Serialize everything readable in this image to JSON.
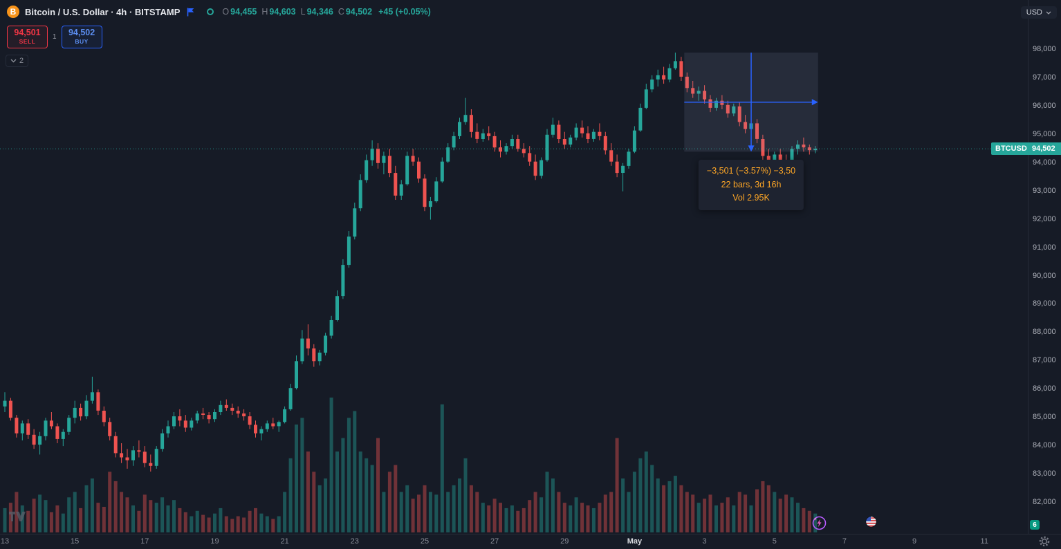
{
  "header": {
    "symbol_title": "Bitcoin / U.S. Dollar · 4h · BITSTAMP",
    "ohlc": [
      {
        "label": "O",
        "value": "94,455"
      },
      {
        "label": "H",
        "value": "94,603"
      },
      {
        "label": "L",
        "value": "94,346"
      },
      {
        "label": "C",
        "value": "94,502"
      }
    ],
    "change": "+45 (+0.05%)",
    "sell_price": "94,501",
    "sell_label": "SELL",
    "spread": "1",
    "buy_price": "94,502",
    "buy_label": "BUY",
    "collapse_count": "2"
  },
  "top_right": {
    "currency": "USD"
  },
  "price_tag": {
    "symbol": "BTCUSD",
    "price": "94,502"
  },
  "measure_tooltip": {
    "line1": "−3,501 (−3.57%) −3,50",
    "line2": "22 bars, 3d 16h",
    "line3": "Vol 2.95K"
  },
  "bottom_right": {
    "badge": "6"
  },
  "icons": {
    "bitcoin-icon": "B",
    "flag-icon": "blue-flag",
    "market-status-icon": "green-ring",
    "chevron-down-icon": "⌄",
    "settings-gear-icon": "gear",
    "supercharts-icon": "lightning-circle",
    "ideas-flag-icon": "us-flag-circle",
    "tradingview-logo": "TV"
  },
  "colors": {
    "up": "#26a69a",
    "down": "#ef5350",
    "accent_blue": "#2962ff",
    "sell_red": "#f23645",
    "buy_blue": "#5b8def",
    "tag_teal": "#26a69a",
    "tooltip_text": "#ffa726",
    "measure_fill": "rgba(147,163,196,0.13)"
  },
  "chart_data": {
    "type": "candlestick",
    "symbol": "BTCUSD",
    "exchange": "BITSTAMP",
    "interval": "4h",
    "last": {
      "open": 94455,
      "high": 94603,
      "low": 94346,
      "close": 94502
    },
    "change": "+45 (+0.05%)",
    "price_axis": {
      "min": 82000,
      "max": 98000,
      "step": 1000,
      "labels": [
        "98,000",
        "97,000",
        "96,000",
        "95,000",
        "94,000",
        "93,000",
        "92,000",
        "91,000",
        "90,000",
        "89,000",
        "88,000",
        "87,000",
        "86,000",
        "85,000",
        "84,000",
        "83,000",
        "82,000"
      ]
    },
    "time_axis": [
      {
        "label": "13",
        "bar": 0
      },
      {
        "label": "15",
        "bar": 12
      },
      {
        "label": "17",
        "bar": 24
      },
      {
        "label": "19",
        "bar": 36
      },
      {
        "label": "21",
        "bar": 48
      },
      {
        "label": "23",
        "bar": 60
      },
      {
        "label": "25",
        "bar": 72
      },
      {
        "label": "27",
        "bar": 84
      },
      {
        "label": "29",
        "bar": 96
      },
      {
        "label": "May",
        "bar": 108,
        "major": true
      },
      {
        "label": "3",
        "bar": 120
      },
      {
        "label": "5",
        "bar": 132
      },
      {
        "label": "7",
        "bar": 144
      },
      {
        "label": "9",
        "bar": 156
      },
      {
        "label": "11",
        "bar": 168
      }
    ],
    "measurement": {
      "from_bar": 117,
      "to_bar": 139,
      "from_price": 97900,
      "to_price": 94400,
      "bars": 22,
      "duration": "3d 16h",
      "price_change": -3501,
      "pct": "-3.57%",
      "volume": "2.95K"
    },
    "candles": [
      [
        85400,
        85900,
        85200,
        85600,
        18
      ],
      [
        85600,
        85700,
        84900,
        85000,
        22
      ],
      [
        85000,
        85100,
        84300,
        84450,
        30
      ],
      [
        84450,
        84900,
        84200,
        84800,
        20
      ],
      [
        84800,
        84950,
        84250,
        84400,
        16
      ],
      [
        84400,
        84600,
        83900,
        84050,
        25
      ],
      [
        84050,
        84500,
        83700,
        84350,
        28
      ],
      [
        84350,
        85000,
        84200,
        84900,
        24
      ],
      [
        84900,
        85200,
        84600,
        84700,
        15
      ],
      [
        84700,
        84800,
        84100,
        84250,
        20
      ],
      [
        84250,
        84600,
        84000,
        84500,
        14
      ],
      [
        84500,
        85100,
        84400,
        85000,
        26
      ],
      [
        85000,
        85600,
        84800,
        85350,
        30
      ],
      [
        85350,
        85500,
        84900,
        85050,
        18
      ],
      [
        85050,
        85800,
        84950,
        85600,
        35
      ],
      [
        85600,
        86450,
        85500,
        85900,
        40
      ],
      [
        85900,
        86000,
        85100,
        85250,
        22
      ],
      [
        85250,
        85400,
        84700,
        84850,
        19
      ],
      [
        84850,
        85000,
        84200,
        84350,
        45
      ],
      [
        84350,
        84500,
        83600,
        83750,
        38
      ],
      [
        83750,
        84100,
        83400,
        83600,
        30
      ],
      [
        83600,
        83900,
        83200,
        83500,
        26
      ],
      [
        83500,
        84000,
        83300,
        83850,
        20
      ],
      [
        83850,
        84200,
        83600,
        83800,
        16
      ],
      [
        83800,
        84000,
        83250,
        83400,
        28
      ],
      [
        83400,
        83700,
        83100,
        83300,
        24
      ],
      [
        83300,
        84000,
        83200,
        83900,
        22
      ],
      [
        83900,
        84600,
        83800,
        84450,
        26
      ],
      [
        84450,
        84900,
        84300,
        84700,
        20
      ],
      [
        84700,
        85200,
        84600,
        85050,
        24
      ],
      [
        85050,
        85300,
        84700,
        84900,
        18
      ],
      [
        84900,
        85100,
        84500,
        84650,
        15
      ],
      [
        84650,
        85000,
        84550,
        84900,
        12
      ],
      [
        84900,
        85250,
        84800,
        85150,
        16
      ],
      [
        85150,
        85350,
        84950,
        85100,
        13
      ],
      [
        85100,
        85200,
        84800,
        84950,
        11
      ],
      [
        84950,
        85300,
        84850,
        85200,
        14
      ],
      [
        85200,
        85600,
        85100,
        85450,
        18
      ],
      [
        85450,
        85650,
        85250,
        85350,
        12
      ],
      [
        85350,
        85500,
        85100,
        85250,
        10
      ],
      [
        85250,
        85400,
        85000,
        85150,
        12
      ],
      [
        85150,
        85300,
        84900,
        85050,
        11
      ],
      [
        85050,
        85200,
        84600,
        84750,
        16
      ],
      [
        84750,
        84900,
        84300,
        84450,
        18
      ],
      [
        84450,
        84700,
        84200,
        84600,
        14
      ],
      [
        84600,
        84900,
        84500,
        84800,
        12
      ],
      [
        84800,
        85000,
        84600,
        84700,
        10
      ],
      [
        84700,
        84900,
        84500,
        84850,
        12
      ],
      [
        84850,
        85400,
        84800,
        85300,
        30
      ],
      [
        85300,
        86200,
        85250,
        86050,
        55
      ],
      [
        86050,
        87200,
        86000,
        87000,
        80
      ],
      [
        87000,
        88100,
        86900,
        87800,
        85
      ],
      [
        87800,
        88300,
        87200,
        87450,
        60
      ],
      [
        87450,
        87600,
        86800,
        87000,
        45
      ],
      [
        87000,
        87400,
        86850,
        87300,
        35
      ],
      [
        87300,
        88000,
        87200,
        87900,
        40
      ],
      [
        87900,
        88600,
        87800,
        88450,
        100
      ],
      [
        88450,
        89500,
        88400,
        89300,
        60
      ],
      [
        89300,
        90600,
        89200,
        90400,
        70
      ],
      [
        90400,
        91600,
        90300,
        91400,
        85
      ],
      [
        91400,
        92600,
        91300,
        92400,
        90
      ],
      [
        92400,
        93600,
        92300,
        93400,
        60
      ],
      [
        93400,
        94300,
        93300,
        94100,
        55
      ],
      [
        94100,
        94800,
        93900,
        94500,
        50
      ],
      [
        94500,
        94700,
        93800,
        94000,
        70
      ],
      [
        94000,
        94400,
        93600,
        94250,
        30
      ],
      [
        94250,
        94500,
        93500,
        93650,
        45
      ],
      [
        93650,
        93900,
        92700,
        92850,
        50
      ],
      [
        92850,
        93400,
        92700,
        93250,
        30
      ],
      [
        93250,
        94400,
        93200,
        94250,
        35
      ],
      [
        94250,
        94500,
        93900,
        94050,
        25
      ],
      [
        94050,
        94200,
        93300,
        93450,
        28
      ],
      [
        93450,
        93600,
        92300,
        92450,
        35
      ],
      [
        92450,
        92800,
        92000,
        92650,
        30
      ],
      [
        92650,
        93500,
        92600,
        93350,
        28
      ],
      [
        93350,
        94200,
        93300,
        94050,
        95
      ],
      [
        94050,
        94700,
        94000,
        94550,
        30
      ],
      [
        94550,
        95100,
        94450,
        94950,
        35
      ],
      [
        94950,
        95600,
        94850,
        95450,
        40
      ],
      [
        95450,
        96300,
        95350,
        95700,
        55
      ],
      [
        95700,
        95900,
        94900,
        95100,
        35
      ],
      [
        95100,
        95400,
        94700,
        94850,
        30
      ],
      [
        94850,
        95200,
        94750,
        95050,
        22
      ],
      [
        95050,
        95300,
        94800,
        94950,
        20
      ],
      [
        94950,
        95100,
        94400,
        94550,
        25
      ],
      [
        94550,
        94800,
        94200,
        94400,
        22
      ],
      [
        94400,
        94700,
        94300,
        94600,
        18
      ],
      [
        94600,
        95000,
        94500,
        94850,
        20
      ],
      [
        94850,
        95000,
        94400,
        94500,
        16
      ],
      [
        94500,
        94700,
        94200,
        94350,
        18
      ],
      [
        94350,
        94600,
        93900,
        94050,
        24
      ],
      [
        94050,
        94300,
        93400,
        93550,
        30
      ],
      [
        93550,
        94200,
        93450,
        94100,
        26
      ],
      [
        94100,
        95200,
        94050,
        95000,
        45
      ],
      [
        95000,
        95600,
        94900,
        95350,
        40
      ],
      [
        95350,
        95500,
        94700,
        94850,
        30
      ],
      [
        94850,
        95100,
        94500,
        94650,
        22
      ],
      [
        94650,
        95000,
        94550,
        94900,
        20
      ],
      [
        94900,
        95400,
        94800,
        95250,
        26
      ],
      [
        95250,
        95500,
        94900,
        95050,
        22
      ],
      [
        95050,
        95300,
        94700,
        94850,
        20
      ],
      [
        94850,
        95200,
        94750,
        95100,
        18
      ],
      [
        95100,
        95400,
        94800,
        94950,
        22
      ],
      [
        94950,
        95100,
        94300,
        94450,
        28
      ],
      [
        94450,
        94700,
        93900,
        94050,
        30
      ],
      [
        94050,
        94300,
        93500,
        93650,
        70
      ],
      [
        93650,
        94000,
        93000,
        93900,
        40
      ],
      [
        93900,
        94500,
        93800,
        94400,
        30
      ],
      [
        94400,
        95300,
        94350,
        95150,
        45
      ],
      [
        95150,
        96100,
        95100,
        95950,
        55
      ],
      [
        95950,
        96800,
        95900,
        96600,
        60
      ],
      [
        96600,
        97100,
        96500,
        96950,
        50
      ],
      [
        96950,
        97300,
        96700,
        97100,
        40
      ],
      [
        97100,
        97400,
        96800,
        96950,
        35
      ],
      [
        96950,
        97500,
        96850,
        97350,
        38
      ],
      [
        97350,
        97900,
        97300,
        97600,
        42
      ],
      [
        97600,
        97750,
        96900,
        97050,
        35
      ],
      [
        97050,
        97200,
        96500,
        96650,
        30
      ],
      [
        96650,
        96900,
        96300,
        96450,
        28
      ],
      [
        96450,
        96700,
        96200,
        96550,
        22
      ],
      [
        96550,
        96750,
        96100,
        96250,
        25
      ],
      [
        96250,
        96400,
        95800,
        95950,
        28
      ],
      [
        95950,
        96300,
        95850,
        96200,
        20
      ],
      [
        96200,
        96400,
        95900,
        96050,
        22
      ],
      [
        96050,
        96200,
        95600,
        95750,
        26
      ],
      [
        95750,
        96100,
        95650,
        96000,
        20
      ],
      [
        96000,
        96150,
        95300,
        95450,
        30
      ],
      [
        95450,
        95700,
        95050,
        95200,
        28
      ],
      [
        95200,
        95500,
        95100,
        95400,
        20
      ],
      [
        95400,
        95550,
        94700,
        94850,
        32
      ],
      [
        94850,
        95000,
        94100,
        94250,
        38
      ],
      [
        94250,
        94500,
        93800,
        93950,
        35
      ],
      [
        93950,
        94400,
        93750,
        94300,
        30
      ],
      [
        94300,
        94500,
        93900,
        94050,
        25
      ],
      [
        94050,
        94300,
        93700,
        93850,
        28
      ],
      [
        93850,
        94600,
        93800,
        94500,
        26
      ],
      [
        94500,
        94800,
        94300,
        94650,
        22
      ],
      [
        94650,
        94900,
        94400,
        94550,
        18
      ],
      [
        94550,
        94650,
        94300,
        94455,
        16
      ],
      [
        94455,
        94603,
        94346,
        94502,
        14
      ]
    ]
  }
}
